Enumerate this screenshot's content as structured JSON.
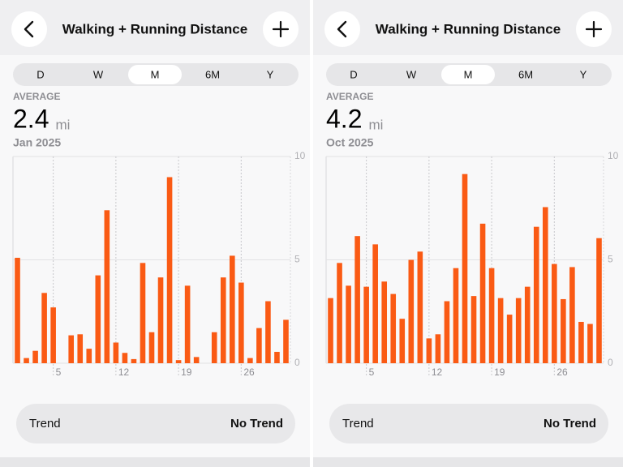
{
  "panels": [
    {
      "title": "Walking + Running Distance",
      "segments": [
        "D",
        "W",
        "M",
        "6M",
        "Y"
      ],
      "selected_segment": 2,
      "average_label": "AVERAGE",
      "average_value": "2.4",
      "unit": "mi",
      "period": "Jan 2025",
      "trend_label": "Trend",
      "trend_value": "No Trend"
    },
    {
      "title": "Walking + Running Distance",
      "segments": [
        "D",
        "W",
        "M",
        "6M",
        "Y"
      ],
      "selected_segment": 2,
      "average_label": "AVERAGE",
      "average_value": "4.2",
      "unit": "mi",
      "period": "Oct 2025",
      "trend_label": "Trend",
      "trend_value": "No Trend"
    }
  ],
  "chart_data": [
    {
      "type": "bar",
      "color": "#fa5a14",
      "x": [
        1,
        2,
        3,
        4,
        5,
        6,
        7,
        8,
        9,
        10,
        11,
        12,
        13,
        14,
        15,
        16,
        17,
        18,
        19,
        20,
        21,
        22,
        23,
        24,
        25,
        26,
        27,
        28,
        29,
        30,
        31
      ],
      "values": [
        5.1,
        0.25,
        0.6,
        3.4,
        2.7,
        0,
        1.35,
        1.4,
        0.7,
        4.25,
        7.4,
        1.0,
        0.5,
        0.2,
        4.85,
        1.5,
        4.15,
        9.0,
        0.15,
        3.75,
        0.3,
        0,
        1.5,
        4.15,
        5.2,
        3.9,
        0.25,
        1.7,
        3.0,
        0.55,
        2.1
      ],
      "xlim": [
        0.5,
        31.5
      ],
      "xticks": [
        5,
        12,
        19,
        26
      ],
      "ylim": [
        0,
        10
      ],
      "yticks": [
        0,
        5,
        10
      ],
      "grid": true
    },
    {
      "type": "bar",
      "color": "#fa5a14",
      "x": [
        1,
        2,
        3,
        4,
        5,
        6,
        7,
        8,
        9,
        10,
        11,
        12,
        13,
        14,
        15,
        16,
        17,
        18,
        19,
        20,
        21,
        22,
        23,
        24,
        25,
        26,
        27,
        28,
        29,
        30,
        31
      ],
      "values": [
        3.15,
        4.85,
        3.75,
        6.15,
        3.7,
        5.75,
        3.95,
        3.35,
        2.15,
        5.0,
        5.4,
        1.2,
        1.4,
        3.0,
        4.6,
        9.15,
        3.25,
        6.75,
        4.6,
        3.15,
        2.35,
        3.15,
        3.7,
        6.6,
        7.55,
        4.8,
        3.1,
        4.65,
        2.0,
        1.9,
        6.05
      ],
      "xlim": [
        0.5,
        31.5
      ],
      "xticks": [
        5,
        12,
        19,
        26
      ],
      "ylim": [
        0,
        10
      ],
      "yticks": [
        0,
        5,
        10
      ],
      "grid": true
    }
  ]
}
